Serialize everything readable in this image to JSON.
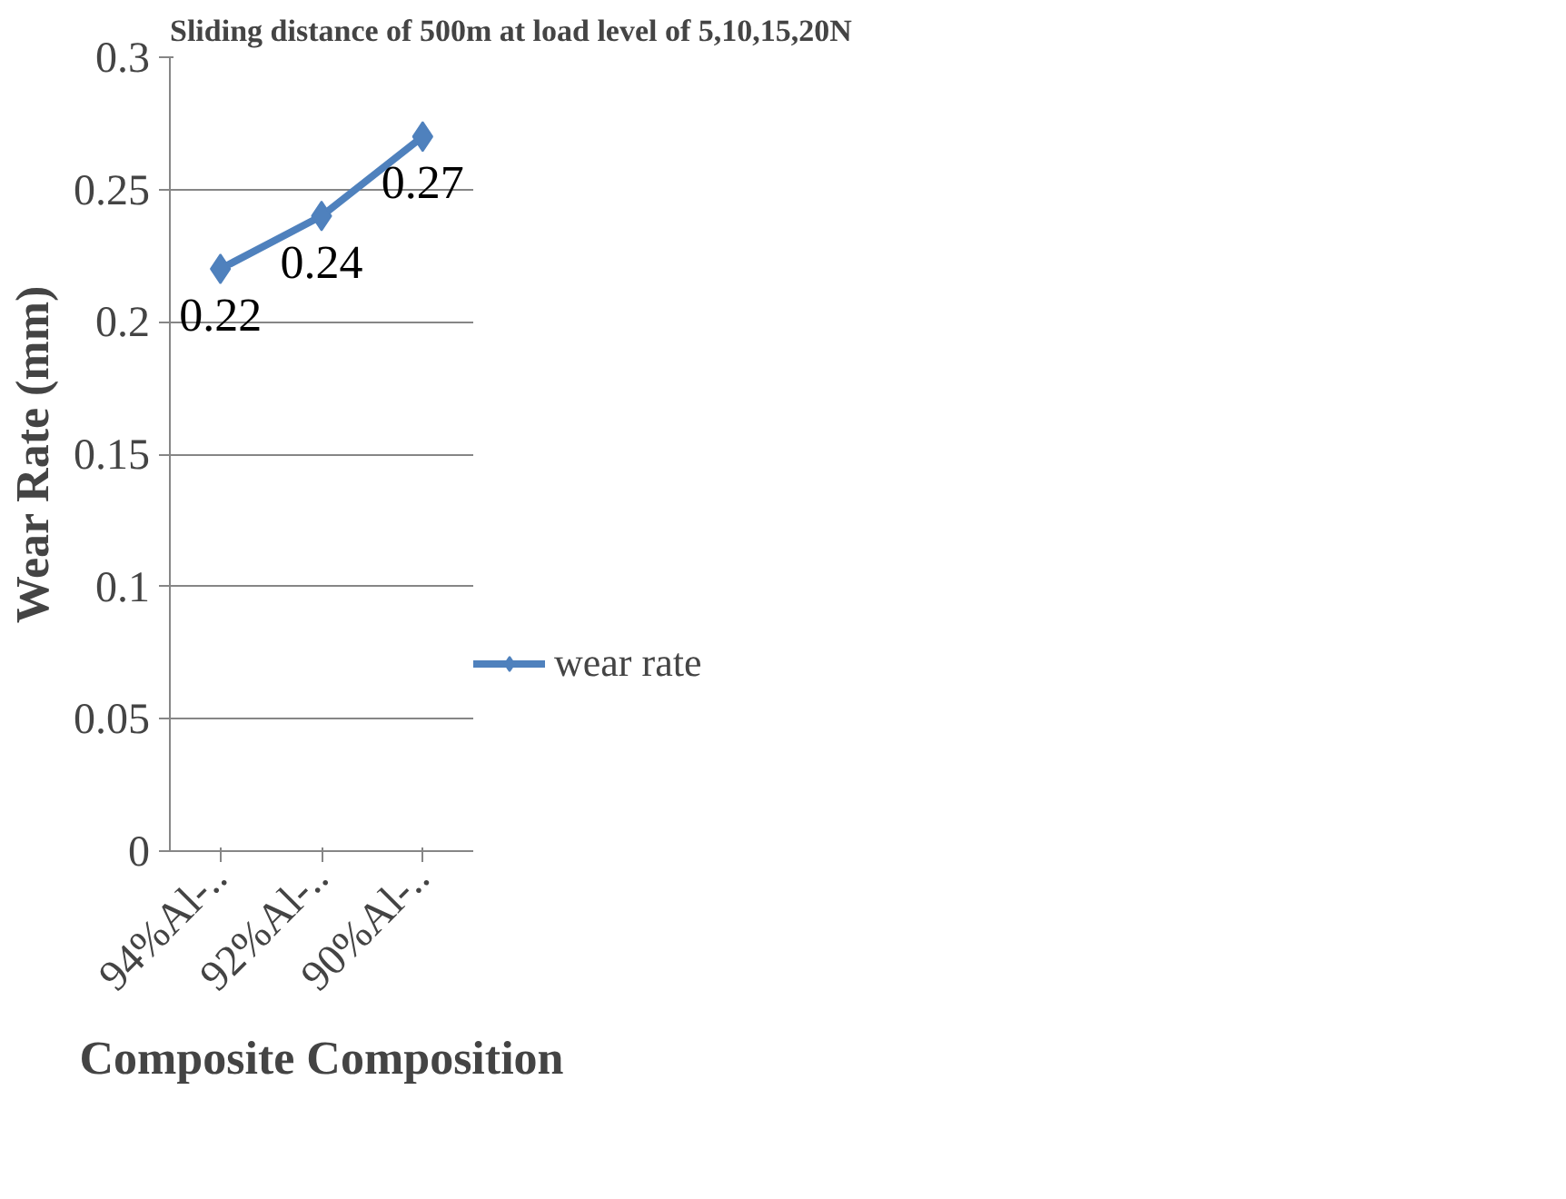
{
  "chart_data": {
    "type": "line",
    "title": "Sliding distance of 500m at load level of 5,10,15,20N",
    "xlabel": "Composite Composition",
    "ylabel": "Wear Rate (mm)",
    "categories": [
      "94%Al-..",
      "92%Al-..",
      "90%Al-.."
    ],
    "series": [
      {
        "name": "wear rate",
        "color": "#4f81bd",
        "values": [
          0.22,
          0.24,
          0.27
        ]
      }
    ],
    "ylim": [
      0,
      0.3
    ],
    "yticks": [
      0,
      0.05,
      0.1,
      0.15,
      0.2,
      0.25,
      0.3
    ],
    "grid": "y",
    "legend": "right",
    "marker": "diamond",
    "data_labels": true
  }
}
